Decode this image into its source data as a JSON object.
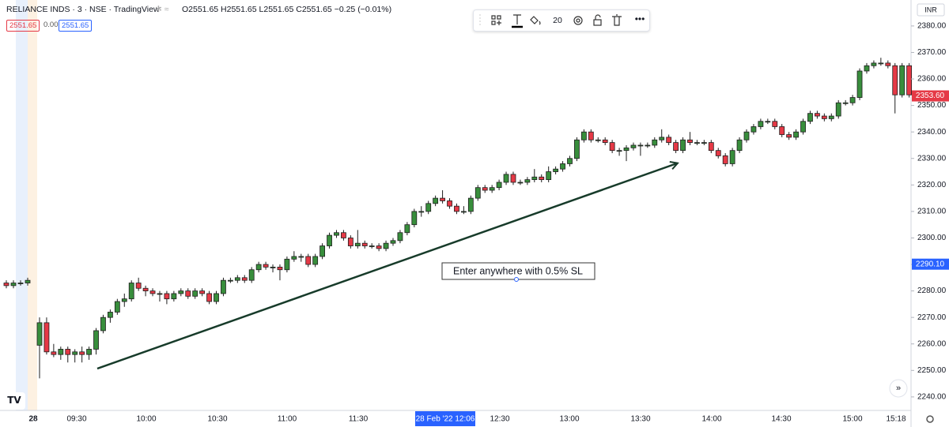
{
  "header": {
    "symbol": "RELIANCE INDS · 3 · NSE · TradingView",
    "ohlc": [
      "O2551.65",
      "H2551.65",
      "L2551.65",
      "C2551.65",
      "−0.25 (−0.01%)"
    ],
    "boxes": [
      "2551.65",
      "0.00",
      "2551.65"
    ],
    "toolbar_size": "20",
    "currency": "INR"
  },
  "chart_data": {
    "type": "candlestick",
    "open": [
      2283,
      2282,
      2283,
      2283,
      2259.5,
      2268,
      2257,
      2256,
      2258,
      2256,
      2257,
      2256,
      2258,
      2265,
      2270,
      2272,
      2276,
      2277,
      2283,
      2281,
      2280,
      2279,
      2279,
      2277,
      2279,
      2280,
      2278,
      2280,
      2279,
      2276,
      2279,
      2284,
      2284,
      2285,
      2284,
      2288,
      2290,
      2289,
      2289,
      2288,
      2292,
      2293,
      2293,
      2290,
      2293,
      2297,
      2301,
      2302,
      2300,
      2297,
      2298,
      2297,
      2297,
      2296,
      2298,
      2299,
      2302,
      2305,
      2310,
      2310,
      2313,
      2315,
      2314,
      2312,
      2310,
      2310,
      2315,
      2319,
      2318,
      2319,
      2321,
      2324,
      2321,
      2321,
      2322,
      2323,
      2322,
      2325,
      2326,
      2328,
      2330,
      2337,
      2340,
      2337,
      2337,
      2336,
      2333,
      2333,
      2334,
      2335,
      2335,
      2335,
      2337,
      2338,
      2336,
      2333,
      2337,
      2336,
      2336,
      2336,
      2333,
      2331,
      2328,
      2333,
      2337,
      2340,
      2342,
      2344,
      2344,
      2342,
      2339,
      2338,
      2340,
      2344,
      2347,
      2346,
      2345,
      2346,
      2351,
      2351,
      2353,
      2363,
      2365,
      2366,
      2366,
      2365,
      2354,
      2365
    ],
    "high": [
      2284,
      2284,
      2284,
      2285,
      2270,
      2270,
      2260,
      2259,
      2259,
      2258,
      2259,
      2259,
      2266,
      2271,
      2273,
      2277,
      2279,
      2284,
      2285,
      2282,
      2281,
      2280,
      2280,
      2280,
      2281,
      2281,
      2281,
      2281,
      2280,
      2280,
      2285,
      2285,
      2286,
      2286,
      2289,
      2291,
      2291,
      2290,
      2290,
      2293,
      2295,
      2294,
      2294,
      2294,
      2298,
      2302,
      2303,
      2303,
      2301,
      2303,
      2299,
      2298,
      2298,
      2299,
      2300,
      2303,
      2306,
      2311,
      2312,
      2314,
      2316,
      2318,
      2315,
      2313,
      2312,
      2316,
      2320,
      2320,
      2320,
      2322,
      2325,
      2325,
      2322,
      2323,
      2326,
      2324,
      2327,
      2327,
      2329,
      2331,
      2338,
      2341,
      2341,
      2338,
      2338,
      2337,
      2334,
      2335,
      2336,
      2336,
      2336,
      2338,
      2341,
      2339,
      2337,
      2338,
      2340,
      2337,
      2337,
      2337,
      2334,
      2332,
      2334,
      2338,
      2341,
      2343,
      2345,
      2345,
      2345,
      2343,
      2340,
      2341,
      2345,
      2348,
      2348,
      2347,
      2347,
      2352,
      2352,
      2354,
      2364,
      2366,
      2367,
      2368,
      2367,
      2366,
      2366,
      2366
    ],
    "low": [
      2281,
      2281,
      2282,
      2282,
      2247,
      2256,
      2255,
      2254,
      2253,
      2253,
      2253,
      2254,
      2256,
      2264,
      2268,
      2271,
      2274,
      2276,
      2280,
      2278,
      2278,
      2276,
      2275,
      2276,
      2278,
      2277,
      2277,
      2278,
      2275,
      2275,
      2278,
      2283,
      2283,
      2283,
      2283,
      2287,
      2288,
      2287,
      2284,
      2287,
      2291,
      2291,
      2289,
      2289,
      2292,
      2296,
      2300,
      2299,
      2296,
      2296,
      2296,
      2296,
      2295,
      2295,
      2297,
      2298,
      2301,
      2304,
      2308,
      2309,
      2312,
      2313,
      2311,
      2309,
      2309,
      2309,
      2314,
      2317,
      2317,
      2318,
      2320,
      2320,
      2320,
      2320,
      2321,
      2321,
      2321,
      2324,
      2325,
      2327,
      2329,
      2336,
      2336,
      2336,
      2335,
      2332,
      2331,
      2329,
      2333,
      2331,
      2334,
      2334,
      2336,
      2335,
      2332,
      2332,
      2335,
      2335,
      2335,
      2332,
      2330,
      2327,
      2327,
      2332,
      2336,
      2339,
      2341,
      2343,
      2341,
      2338,
      2337,
      2337,
      2339,
      2343,
      2345,
      2344,
      2344,
      2345,
      2350,
      2350,
      2352,
      2362,
      2364,
      2365,
      2364,
      2347,
      2353,
      2353
    ],
    "close": [
      2282,
      2283,
      2283,
      2284,
      2268,
      2257,
      2256,
      2258,
      2256,
      2257,
      2256,
      2258,
      2265,
      2270,
      2272,
      2276,
      2277,
      2283,
      2281,
      2280,
      2279,
      2279,
      2277,
      2279,
      2280,
      2278,
      2280,
      2279,
      2276,
      2279,
      2284,
      2284,
      2285,
      2284,
      2288,
      2290,
      2289,
      2289,
      2288,
      2292,
      2293,
      2293,
      2290,
      2293,
      2297,
      2301,
      2302,
      2300,
      2297,
      2298,
      2297,
      2297,
      2296,
      2298,
      2299,
      2302,
      2305,
      2310,
      2310,
      2313,
      2315,
      2314,
      2312,
      2310,
      2310,
      2315,
      2319,
      2318,
      2319,
      2321,
      2324,
      2321,
      2321,
      2322,
      2323,
      2322,
      2325,
      2326,
      2328,
      2330,
      2337,
      2340,
      2337,
      2337,
      2336,
      2333,
      2333,
      2334,
      2335,
      2335,
      2335,
      2337,
      2338,
      2336,
      2333,
      2337,
      2336,
      2336,
      2336,
      2333,
      2331,
      2328,
      2333,
      2337,
      2340,
      2342,
      2344,
      2344,
      2342,
      2339,
      2338,
      2340,
      2344,
      2347,
      2346,
      2345,
      2346,
      2351,
      2351,
      2353,
      2363,
      2365,
      2366,
      2366,
      2365,
      2354,
      2365,
      2354
    ],
    "up_color": "#388e3c",
    "down_color": "#e53946",
    "border_color": "#1e1e1e",
    "ylim": [
      2234.9,
      2389.8
    ],
    "yticks": [
      {
        "value": 2240,
        "label": "2240.00"
      },
      {
        "value": 2250,
        "label": "2250.00"
      },
      {
        "value": 2260,
        "label": "2260.00"
      },
      {
        "value": 2270,
        "label": "2270.00"
      },
      {
        "value": 2280,
        "label": "2280.00"
      },
      {
        "value": 2290,
        "label": "2290.00"
      },
      {
        "value": 2300,
        "label": "2300.00"
      },
      {
        "value": 2310,
        "label": "2310.00"
      },
      {
        "value": 2320,
        "label": "2320.00"
      },
      {
        "value": 2330,
        "label": "2330.00"
      },
      {
        "value": 2340,
        "label": "2340.00"
      },
      {
        "value": 2350,
        "label": "2350.00"
      },
      {
        "value": 2360,
        "label": "2360.00"
      },
      {
        "value": 2370,
        "label": "2370.00"
      },
      {
        "value": 2380,
        "label": "2380.00"
      }
    ],
    "xtick_labels": [
      "28",
      "09:30",
      "10:00",
      "10:30",
      "11:00",
      "11:30",
      "28 Feb '22  12:06",
      "12:30",
      "13:00",
      "13:30",
      "14:00",
      "14:30",
      "15:00",
      "15:18"
    ],
    "price_labels": [
      {
        "value": 2353.6,
        "label": "2353.60",
        "color": "#e53946"
      },
      {
        "value": 2290.1,
        "label": "2290.10",
        "color": "#2962ff"
      }
    ],
    "annotations": [
      "Enter anywhere with 0.5% SL"
    ]
  }
}
